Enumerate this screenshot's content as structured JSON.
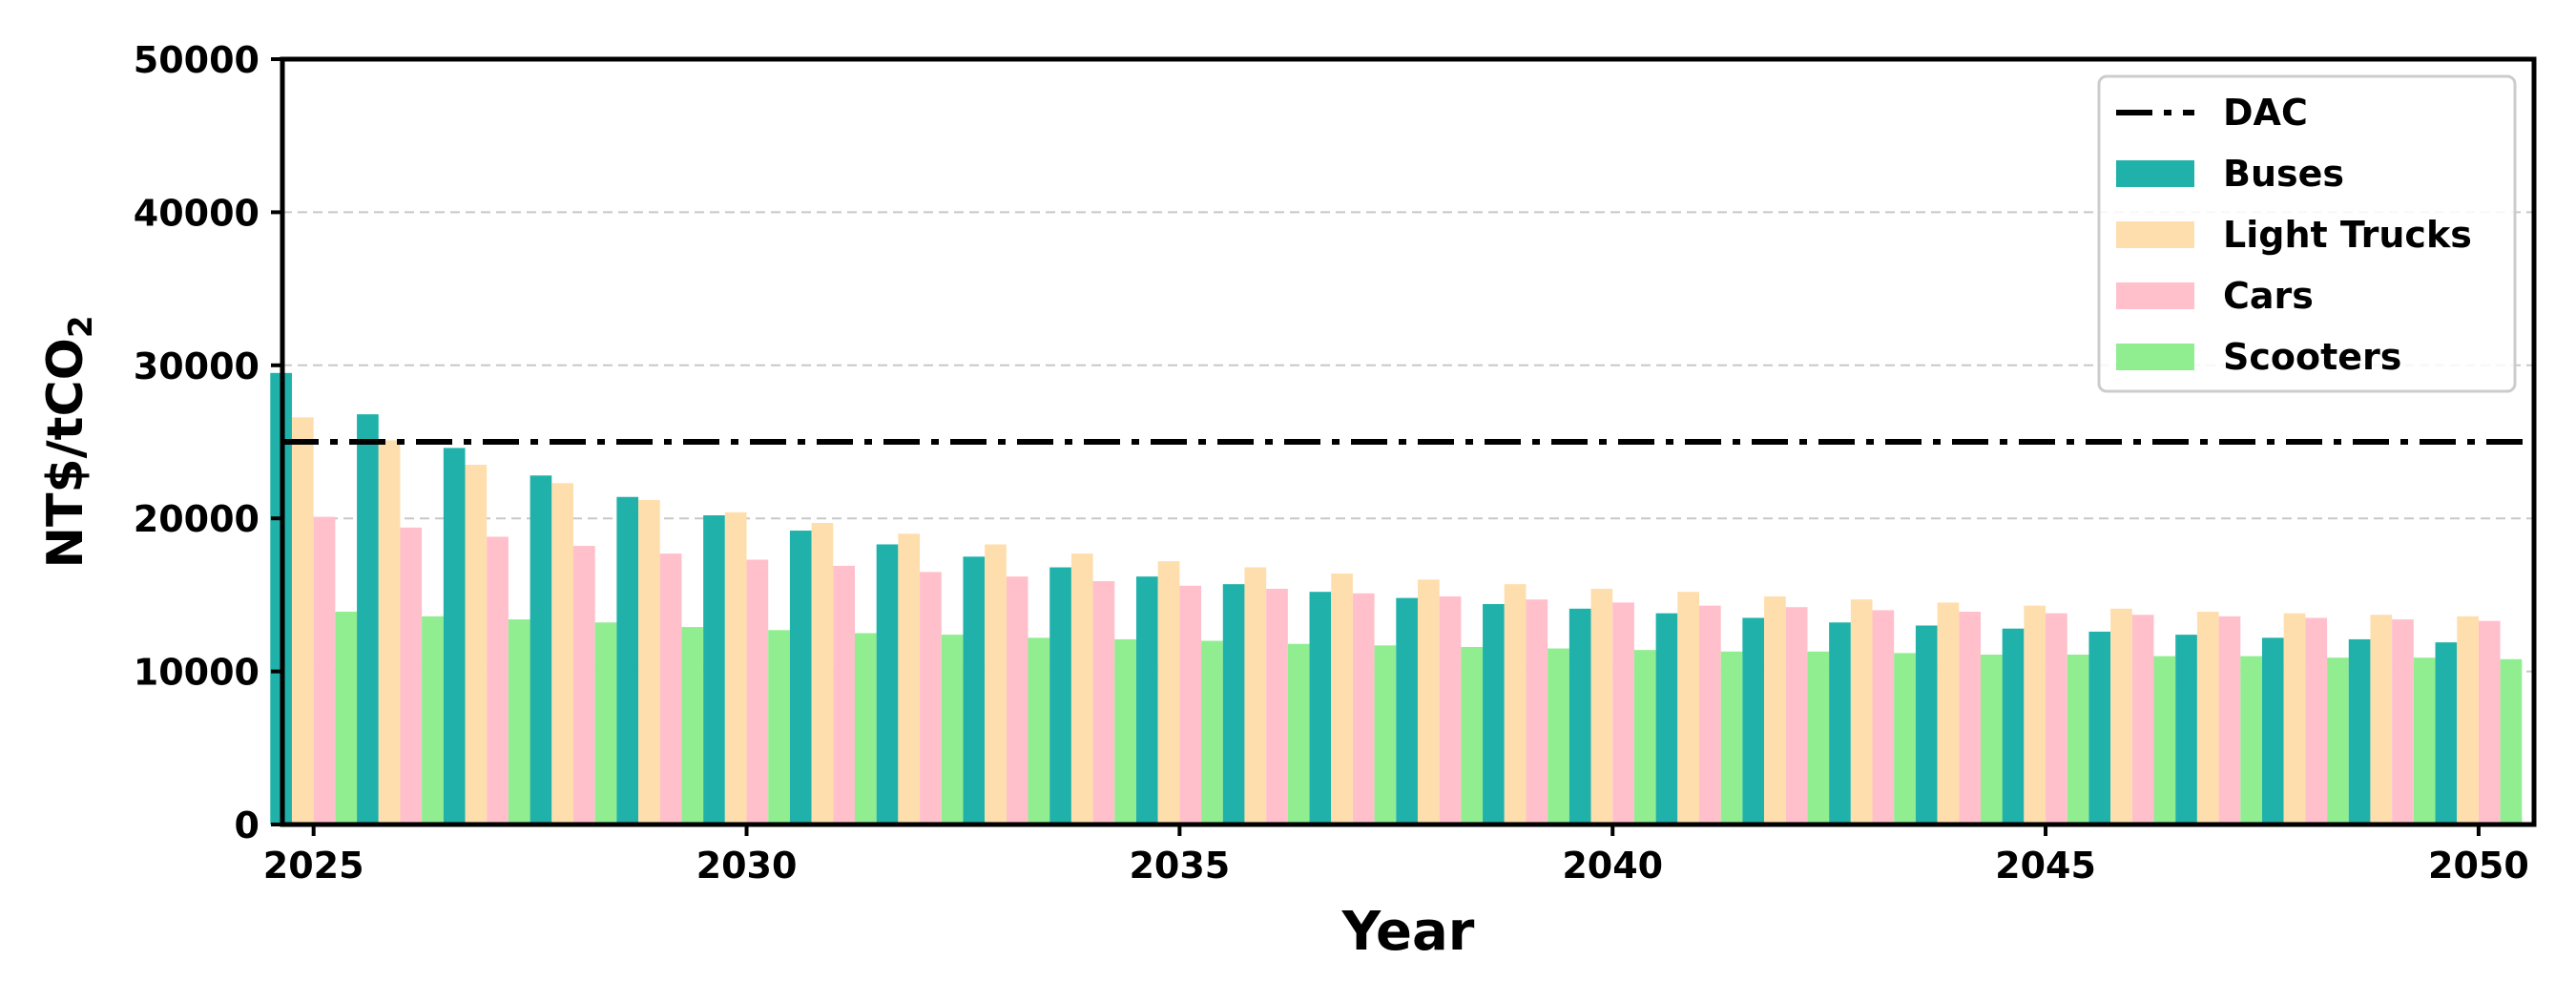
{
  "chart_data": {
    "type": "bar",
    "xlabel": "Year",
    "ylabel_main": "NT$/tCO",
    "ylabel_sub": "2",
    "ylim": [
      0,
      50000
    ],
    "yticks": [
      0,
      10000,
      20000,
      30000,
      40000,
      50000
    ],
    "xticks": [
      2025,
      2030,
      2035,
      2040,
      2045,
      2050
    ],
    "grid": "y-dashed",
    "legend_position": "top-right",
    "categories": [
      2025,
      2026,
      2027,
      2028,
      2029,
      2030,
      2031,
      2032,
      2033,
      2034,
      2035,
      2036,
      2037,
      2038,
      2039,
      2040,
      2041,
      2042,
      2043,
      2044,
      2045,
      2046,
      2047,
      2048,
      2049,
      2050
    ],
    "reference_line": {
      "name": "DAC",
      "value": 25000,
      "color": "#000000"
    },
    "series": [
      {
        "name": "Buses",
        "color": "#20b2aa",
        "values": [
          29500,
          26800,
          24600,
          22800,
          21400,
          20200,
          19200,
          18300,
          17500,
          16800,
          16200,
          15700,
          15200,
          14800,
          14400,
          14100,
          13800,
          13500,
          13200,
          13000,
          12800,
          12600,
          12400,
          12200,
          12100,
          11900
        ]
      },
      {
        "name": "Light Trucks",
        "color": "#ffdead",
        "values": [
          26600,
          25100,
          23500,
          22300,
          21200,
          20400,
          19700,
          19000,
          18300,
          17700,
          17200,
          16800,
          16400,
          16000,
          15700,
          15400,
          15200,
          14900,
          14700,
          14500,
          14300,
          14100,
          13900,
          13800,
          13700,
          13600
        ]
      },
      {
        "name": "Cars",
        "color": "#ffc0cb",
        "values": [
          20100,
          19400,
          18800,
          18200,
          17700,
          17300,
          16900,
          16500,
          16200,
          15900,
          15600,
          15400,
          15100,
          14900,
          14700,
          14500,
          14300,
          14200,
          14000,
          13900,
          13800,
          13700,
          13600,
          13500,
          13400,
          13300
        ]
      },
      {
        "name": "Scooters",
        "color": "#90ee90",
        "values": [
          13900,
          13600,
          13400,
          13200,
          12900,
          12700,
          12500,
          12400,
          12200,
          12100,
          12000,
          11800,
          11700,
          11600,
          11500,
          11400,
          11300,
          11300,
          11200,
          11100,
          11100,
          11000,
          11000,
          10900,
          10900,
          10800
        ]
      }
    ]
  }
}
